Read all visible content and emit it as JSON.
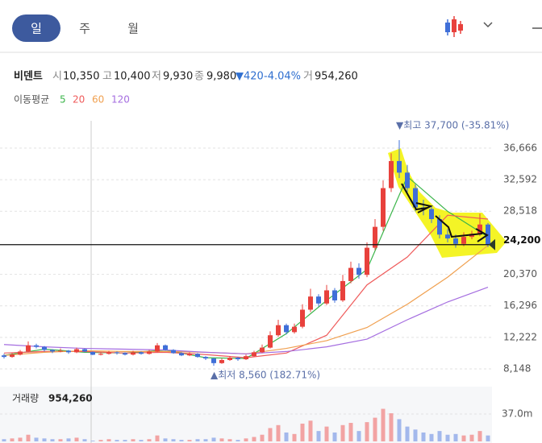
{
  "ui": {
    "tabs": [
      "일",
      "주",
      "월"
    ],
    "stock": {
      "name": "비덴트",
      "open_label": "시",
      "open": "10,350",
      "high_label": "고",
      "high": "10,400",
      "low_label": "저",
      "low": "9,930",
      "close_label": "종",
      "close": "9,980",
      "change": "▼420",
      "change_pct": "-4.04%",
      "volume_label": "거",
      "volume": "954,260"
    }
  },
  "chart_data": {
    "type": "candlestick",
    "ylim": [
      6386,
      39672
    ],
    "yticks": [
      {
        "value": 36666,
        "label": "36,666"
      },
      {
        "value": 32592,
        "label": "32,592"
      },
      {
        "value": 28518,
        "label": "28,518"
      },
      {
        "value": 20370,
        "label": "20,370"
      },
      {
        "value": 16296,
        "label": "16,296"
      },
      {
        "value": 12222,
        "label": "12,222"
      },
      {
        "value": 8148,
        "label": "8,148"
      }
    ],
    "grid": true,
    "up_color": "#e8413c",
    "down_color": "#3f6fd8",
    "open": [
      9900,
      9700,
      10000,
      10400,
      11200,
      11000,
      10600,
      10400,
      10500,
      10300,
      10700,
      10350,
      9980,
      10100,
      10300,
      10200,
      10000,
      10300,
      10100,
      10400,
      11200,
      10600,
      10200,
      9900,
      10100,
      9700,
      9500,
      8900,
      9300,
      9600,
      9400,
      9800,
      10300,
      10900,
      12500,
      13800,
      12900,
      13600,
      15800,
      17500,
      16600,
      18300,
      17000,
      19500,
      21200,
      20300,
      23800,
      26500,
      31500,
      35000,
      33500,
      31500,
      29000,
      28800,
      27500,
      25500,
      25000,
      24300,
      25200,
      25600,
      26800
    ],
    "high": [
      10100,
      10200,
      10600,
      11700,
      11400,
      11100,
      10700,
      10800,
      10600,
      10900,
      10800,
      10400,
      10300,
      10500,
      10400,
      10300,
      10500,
      10400,
      10600,
      11500,
      11300,
      10700,
      10300,
      10300,
      10200,
      9800,
      9600,
      9500,
      9800,
      9700,
      10000,
      10500,
      11300,
      13000,
      14500,
      14000,
      14000,
      16500,
      18500,
      17800,
      19000,
      18600,
      20300,
      22000,
      21800,
      24500,
      27500,
      32500,
      36000,
      37700,
      34500,
      32000,
      30000,
      29200,
      28000,
      26200,
      25500,
      25800,
      26000,
      28200,
      27000
    ],
    "low": [
      9500,
      9600,
      9900,
      10300,
      10800,
      10400,
      10200,
      10300,
      10100,
      10200,
      10300,
      9930,
      9900,
      10000,
      10000,
      9900,
      9900,
      10000,
      10000,
      10300,
      10500,
      10100,
      9800,
      9800,
      9600,
      9300,
      8560,
      8800,
      9200,
      9200,
      9300,
      9700,
      10200,
      10800,
      12300,
      12600,
      12700,
      13400,
      15500,
      16200,
      16400,
      16700,
      16800,
      19200,
      19800,
      20000,
      23500,
      26000,
      31000,
      32800,
      31000,
      28500,
      28000,
      27000,
      25000,
      24500,
      23800,
      24000,
      24900,
      25300,
      23900
    ],
    "close": [
      9700,
      10000,
      10400,
      11200,
      11000,
      10600,
      10400,
      10500,
      10300,
      10700,
      10400,
      9980,
      10100,
      10300,
      10200,
      10000,
      10300,
      10100,
      10400,
      11200,
      10600,
      10200,
      9900,
      10100,
      9700,
      9500,
      8900,
      9300,
      9600,
      9400,
      9800,
      10300,
      10900,
      12500,
      13800,
      12900,
      13600,
      15800,
      17500,
      16600,
      18300,
      17000,
      19500,
      21200,
      20300,
      23800,
      26500,
      31500,
      35000,
      33500,
      31500,
      29000,
      28800,
      27500,
      25500,
      25000,
      24300,
      25200,
      25600,
      26800,
      24200
    ],
    "ma": {
      "title": "이동평균",
      "series": [
        {
          "name": "5",
          "color": "#3bb54a",
          "values": [
            9900,
            10700,
            10300,
            10200,
            10600,
            9600,
            9500,
            12700,
            17000,
            21000,
            33000,
            28500,
            25200
          ]
        },
        {
          "name": "20",
          "color": "#ef5b5b",
          "values": [
            10200,
            10400,
            10400,
            10200,
            10300,
            10000,
            9600,
            10200,
            12500,
            19000,
            22600,
            28000,
            27500
          ]
        },
        {
          "name": "60",
          "color": "#f0a050",
          "values": [
            9900,
            10300,
            10500,
            10400,
            10400,
            10300,
            10100,
            10800,
            11800,
            13500,
            16500,
            20000,
            24100
          ]
        },
        {
          "name": "120",
          "color": "#a56ee0",
          "values": [
            11300,
            11000,
            10800,
            10700,
            10600,
            10300,
            10100,
            10400,
            11000,
            12000,
            14500,
            16800,
            18700
          ]
        }
      ]
    },
    "price_line": {
      "value": 24200,
      "label": "24,200"
    },
    "annotations": [
      {
        "text": "▼최고 37,700 (-35.81%)",
        "value": 37700
      },
      {
        "text": "▲최저 8,560 (182.71%)",
        "value": 8560
      }
    ],
    "volume": {
      "title": "거래량",
      "current": "954,260",
      "ylim": [
        0,
        74
      ],
      "yticks": [
        {
          "value": 37,
          "label": "37.0m"
        }
      ],
      "values": [
        3,
        4,
        5,
        9,
        5,
        4,
        3,
        3,
        4,
        5,
        3,
        0.95426,
        2,
        3,
        2,
        2,
        3,
        2,
        3,
        8,
        4,
        3,
        2,
        2,
        3,
        3,
        5,
        4,
        3,
        2,
        4,
        6,
        9,
        18,
        22,
        12,
        10,
        24,
        28,
        14,
        20,
        12,
        22,
        25,
        14,
        26,
        32,
        44,
        38,
        30,
        20,
        16,
        12,
        10,
        14,
        9,
        10,
        8,
        9,
        14,
        8
      ]
    }
  }
}
